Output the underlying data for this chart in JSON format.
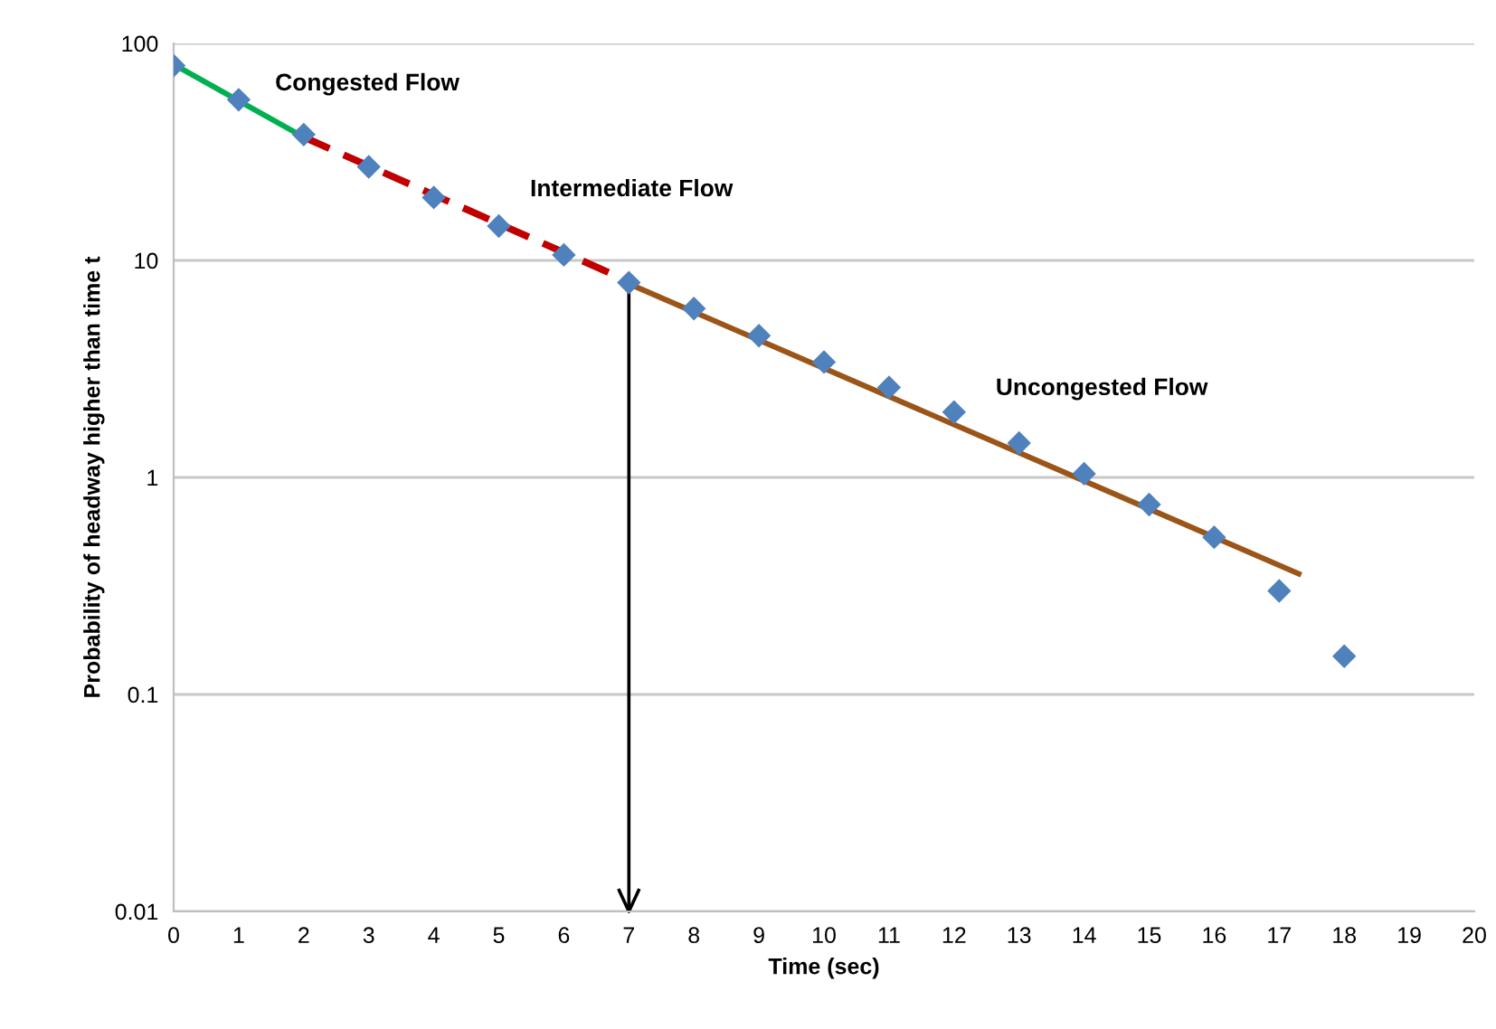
{
  "chart_data": {
    "type": "scatter",
    "xlabel": "Time (sec)",
    "ylabel": "Probability of headway higher than time t",
    "log": "y",
    "grid": "y",
    "xlim": [
      0,
      20
    ],
    "xticks": [
      0,
      1,
      2,
      3,
      4,
      5,
      6,
      7,
      8,
      9,
      10,
      11,
      12,
      13,
      14,
      15,
      16,
      17,
      18,
      19,
      20
    ],
    "ylim": [
      0.01,
      100
    ],
    "yticks": [
      0.01,
      0.1,
      1,
      10,
      100
    ],
    "series": [
      {
        "marker": "diamond",
        "color": "#4f81bd",
        "x": [
          0,
          1,
          2,
          3,
          4,
          5,
          6,
          7,
          8,
          9,
          10,
          11,
          12,
          13,
          14,
          15,
          16,
          17,
          18
        ],
        "values": [
          79,
          55,
          38,
          27,
          19.5,
          14.4,
          10.6,
          7.9,
          6.0,
          4.5,
          3.4,
          2.6,
          2.0,
          1.44,
          1.04,
          0.75,
          0.53,
          0.3,
          0.15
        ]
      },
      {
        "type": "line",
        "color": "#00b050",
        "line_style": "solid",
        "x": [
          0,
          2
        ],
        "values": [
          80,
          37
        ]
      },
      {
        "type": "line",
        "color": "#c00000",
        "line_style": "dashed",
        "x": [
          2,
          7
        ],
        "values": [
          37,
          8
        ]
      },
      {
        "type": "line",
        "color": "#9c5518",
        "line_style": "solid",
        "x": [
          7,
          17.3
        ],
        "values": [
          7.8,
          0.36
        ]
      }
    ],
    "ref_lines": [
      {
        "axis": "x",
        "value": 7,
        "color": "#000000"
      }
    ],
    "annotations": [
      "Congested Flow",
      "Intermediate Flow",
      "Uncongested Flow"
    ]
  }
}
